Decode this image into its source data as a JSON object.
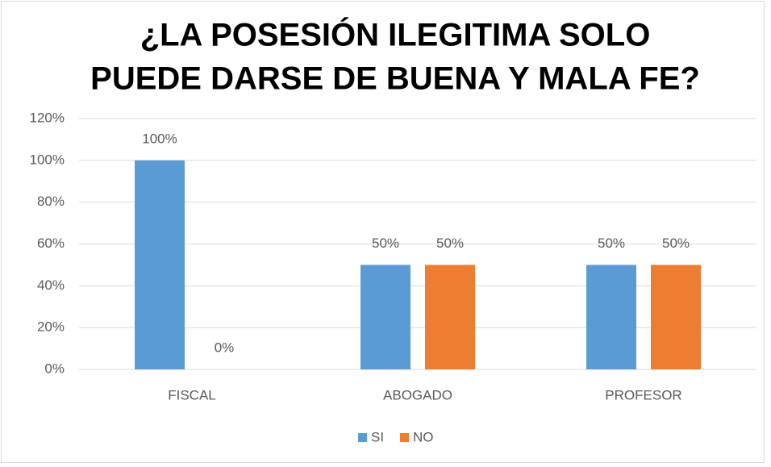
{
  "chart_data": {
    "type": "bar",
    "title": [
      "¿LA POSESIÓN ILEGITIMA SOLO",
      "PUEDE DARSE DE BUENA Y MALA FE?"
    ],
    "categories": [
      "FISCAL",
      "ABOGADO",
      "PROFESOR"
    ],
    "series": [
      {
        "name": "SI",
        "color": "#5b9bd5",
        "values": [
          100,
          50,
          50
        ],
        "value_labels": [
          "100%",
          "50%",
          "50%"
        ]
      },
      {
        "name": "NO",
        "color": "#ed7d31",
        "values": [
          0,
          50,
          50
        ],
        "value_labels": [
          "0%",
          "50%",
          "50%"
        ]
      }
    ],
    "ylim": [
      0,
      120
    ],
    "yticks": [
      {
        "value": 0,
        "label": "0%"
      },
      {
        "value": 20,
        "label": "20%"
      },
      {
        "value": 40,
        "label": "40%"
      },
      {
        "value": 60,
        "label": "60%"
      },
      {
        "value": 80,
        "label": "80%"
      },
      {
        "value": 100,
        "label": "100%"
      },
      {
        "value": 120,
        "label": "120%"
      }
    ],
    "grid": true,
    "legend": "bottom"
  }
}
